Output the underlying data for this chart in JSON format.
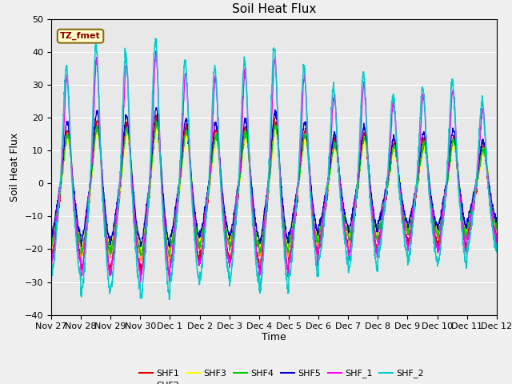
{
  "title": "Soil Heat Flux",
  "ylabel": "Soil Heat Flux",
  "xlabel": "Time",
  "annotation": "TZ_fmet",
  "ylim": [
    -40,
    50
  ],
  "series_colors": {
    "SHF1": "#dd0000",
    "SHF2": "#ff9900",
    "SHF3": "#ffff00",
    "SHF4": "#00cc00",
    "SHF5": "#0000cc",
    "SHF_1": "#ff00ff",
    "SHF_2": "#00cccc"
  },
  "xtick_labels": [
    "Nov 27",
    "Nov 28",
    "Nov 29",
    "Nov 30",
    "Dec 1",
    "Dec 2",
    "Dec 3",
    "Dec 4",
    "Dec 5",
    "Dec 6",
    "Dec 7",
    "Dec 8",
    "Dec 9",
    "Dec 10",
    "Dec 11",
    "Dec 12"
  ],
  "n_days": 15,
  "points_per_day": 144
}
